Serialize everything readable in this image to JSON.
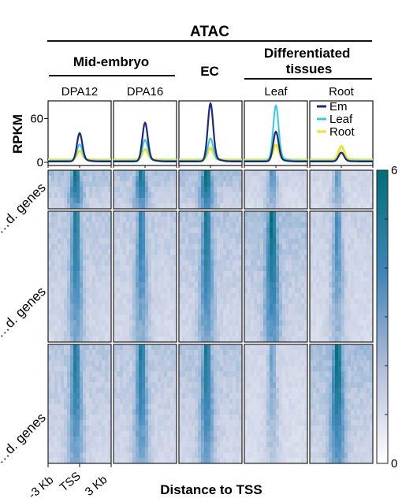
{
  "chart_data": {
    "type": "heatmap",
    "header": {
      "title": "ATAC",
      "groups": [
        {
          "label": "Mid-embryo"
        },
        {
          "label": "EC"
        },
        {
          "label": "Differentiated\ntissues"
        }
      ]
    },
    "columns": [
      "DPA12",
      "DPA16",
      "",
      "Leaf",
      "Root"
    ],
    "profile": {
      "ylabel": "RPKM",
      "yticks": [
        0,
        60
      ],
      "ylim": [
        0,
        80
      ],
      "legend": [
        {
          "name": "Em",
          "color": "#1c2a7a"
        },
        {
          "name": "Leaf",
          "color": "#33c8e4"
        },
        {
          "name": "Root",
          "color": "#f0e030"
        }
      ],
      "peaks": [
        {
          "em": 38,
          "leaf": 22,
          "root": 12
        },
        {
          "em": 52,
          "leaf": 28,
          "root": 14
        },
        {
          "em": 78,
          "leaf": 30,
          "root": 16
        },
        {
          "em": 40,
          "leaf": 74,
          "root": 20
        },
        {
          "em": 12,
          "leaf": 10,
          "root": 18
        }
      ]
    },
    "heatmap": {
      "row_groups": [
        {
          "label": "…d. genes",
          "intensity": [
            0.92,
            0.88,
            0.98,
            0.55,
            0.5
          ]
        },
        {
          "label": "…d. genes",
          "intensity": [
            0.8,
            0.72,
            0.85,
            0.96,
            0.6
          ]
        },
        {
          "label": "…d. genes",
          "intensity": [
            0.82,
            0.8,
            0.85,
            0.45,
            0.98
          ]
        }
      ],
      "colorbar": {
        "min": 0,
        "max": 6,
        "colors": [
          "#ffffff",
          "#b8c2dc",
          "#3f85b8",
          "#006f78"
        ]
      }
    },
    "xaxis": {
      "ticks": [
        "-3 Kb",
        "TSS",
        "3 Kb"
      ],
      "label": "Distance to TSS"
    }
  }
}
